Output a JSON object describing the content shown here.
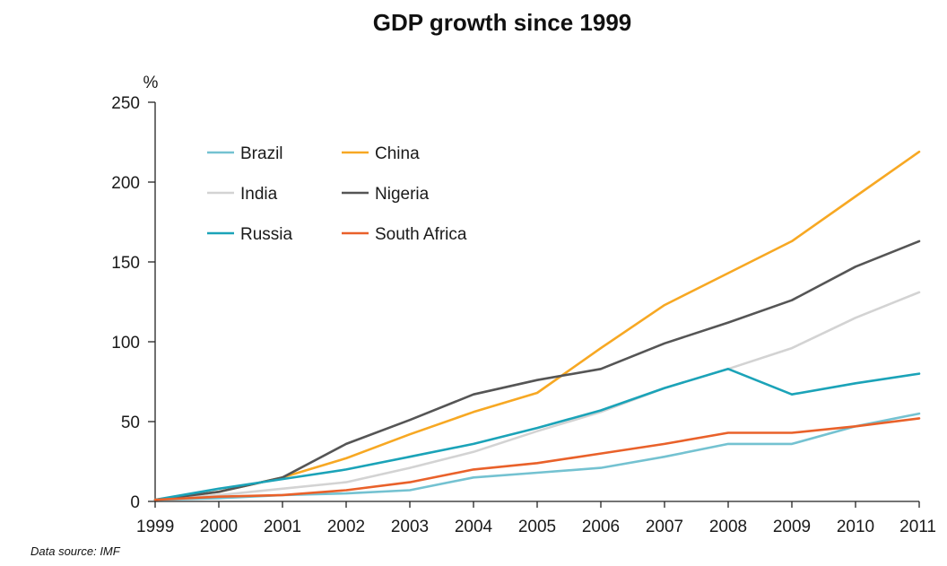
{
  "chart_data": {
    "type": "line",
    "title": "GDP growth since 1999",
    "ylabel": "%",
    "xlabel": "",
    "x": [
      "1999",
      "2000",
      "2001",
      "2002",
      "2003",
      "2004",
      "2005",
      "2006",
      "2007",
      "2008",
      "2009",
      "2010",
      "2011"
    ],
    "ylim": [
      0,
      250
    ],
    "yticks": [
      0,
      50,
      100,
      150,
      200,
      250
    ],
    "grid": false,
    "legend_position": "top-left",
    "source": "Data source: IMF",
    "series": [
      {
        "name": "Brazil",
        "color": "#74c2d1",
        "values": [
          1,
          2,
          4,
          5,
          7,
          15,
          18,
          21,
          28,
          36,
          36,
          47,
          55
        ]
      },
      {
        "name": "China",
        "color": "#f7a823",
        "values": [
          1,
          6,
          15,
          27,
          42,
          56,
          68,
          96,
          123,
          143,
          163,
          191,
          219
        ]
      },
      {
        "name": "India",
        "color": "#d3d3d3",
        "values": [
          1,
          4,
          8,
          12,
          21,
          31,
          44,
          56,
          71,
          83,
          96,
          115,
          131
        ]
      },
      {
        "name": "Nigeria",
        "color": "#555555",
        "values": [
          1,
          6,
          15,
          36,
          51,
          67,
          76,
          83,
          99,
          112,
          126,
          147,
          163
        ]
      },
      {
        "name": "Russia",
        "color": "#1ba3b8",
        "values": [
          1,
          8,
          14,
          20,
          28,
          36,
          46,
          57,
          71,
          83,
          67,
          74,
          80
        ]
      },
      {
        "name": "South Africa",
        "color": "#e9612a",
        "values": [
          1,
          3,
          4,
          7,
          12,
          20,
          24,
          30,
          36,
          43,
          43,
          47,
          52
        ]
      }
    ]
  }
}
